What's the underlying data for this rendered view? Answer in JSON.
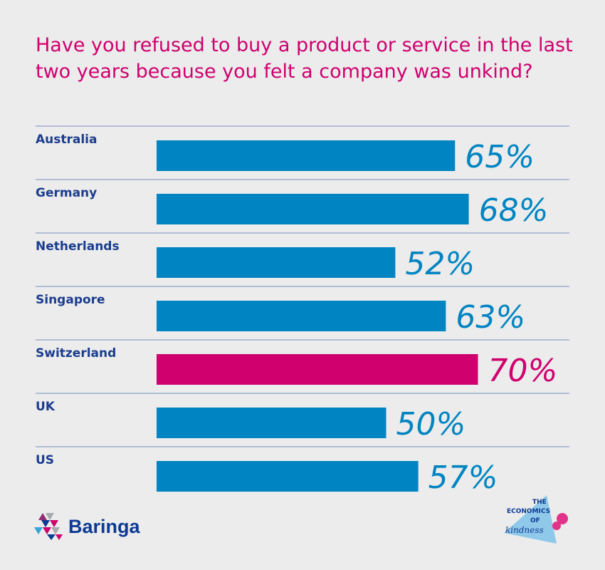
{
  "chart_data": {
    "type": "bar",
    "orientation": "horizontal",
    "title": "Have you refused to buy a product or service in the last two years because you felt a company was unkind?",
    "categories": [
      "Australia",
      "Germany",
      "Netherlands",
      "Singapore",
      "Switzerland",
      "UK",
      "US"
    ],
    "values": [
      65,
      68,
      52,
      63,
      70,
      50,
      57
    ],
    "value_labels": [
      "65%",
      "68%",
      "52%",
      "63%",
      "70%",
      "50%",
      "57%"
    ],
    "highlight": "Switzerland",
    "colors": {
      "bar": "#0084c2",
      "highlight": "#d0006f",
      "label": "#1b3d8f",
      "rule": "#8f9fcb"
    },
    "xlim": [
      0,
      100
    ],
    "grid": false
  },
  "brand": {
    "logo": "Baringa",
    "badge": "THE ECONOMICS OF kindness"
  }
}
